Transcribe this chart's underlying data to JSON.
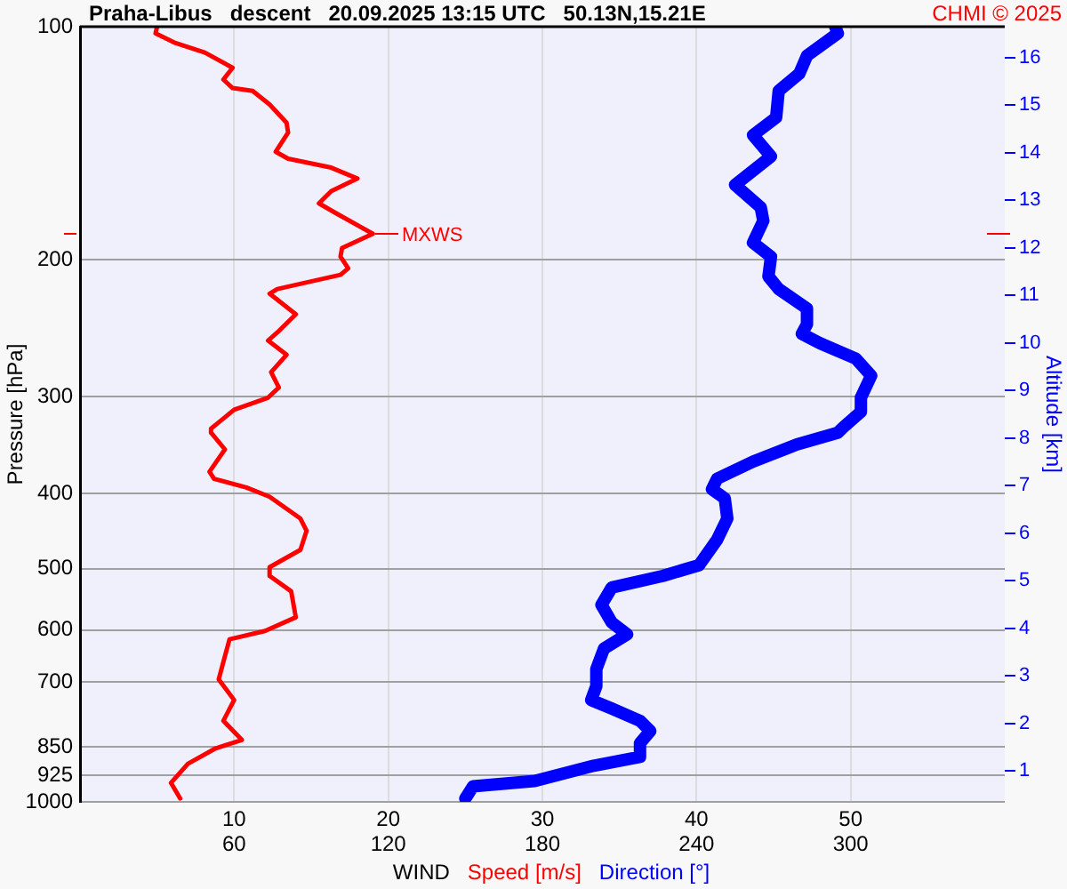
{
  "chart_data": {
    "type": "line",
    "title": "Praha-Libus   descent   20.09.2025 13:15 UTC   50.13N,15.21E",
    "xlabel": "WIND",
    "ylabel": "Pressure [hPa]",
    "y2label": "Altitude [km]",
    "annotations": [
      "CHMI © 2025",
      {
        "text": "MXWS",
        "x": 19.5,
        "y": 185
      }
    ],
    "series": [
      {
        "name": "Speed [m/s]",
        "color": "#ff0000",
        "x": [
          5.0,
          4.9,
          6.2,
          8.1,
          9.9,
          9.3,
          9.9,
          11.2,
          12.3,
          13.4,
          13.5,
          12.7,
          13.5,
          16.3,
          18.0,
          16.3,
          15.5,
          16.6,
          19.0,
          17.0,
          16.9,
          17.4,
          16.9,
          12.8,
          12.3,
          14.0,
          12.8,
          12.2,
          13.4,
          12.4,
          12.9,
          12.2,
          10.0,
          8.5,
          8.5,
          9.4,
          8.4,
          8.7,
          10.8,
          12.3,
          14.3,
          14.7,
          14.3,
          12.3,
          12.3,
          13.7,
          14.0,
          12.0,
          9.7,
          9.3,
          9.0,
          10.0,
          9.3,
          10.5,
          8.8,
          7.0,
          5.9,
          6.5
        ],
        "values": [
          100,
          102,
          105,
          108,
          113,
          117,
          120,
          121,
          126,
          133,
          137,
          145,
          148,
          152,
          157,
          163,
          169,
          174,
          185,
          193,
          198,
          205,
          209,
          218,
          221,
          235,
          248,
          254,
          265,
          279,
          292,
          301,
          312,
          330,
          334,
          351,
          375,
          383,
          393,
          404,
          431,
          447,
          473,
          498,
          511,
          535,
          578,
          602,
          617,
          660,
          695,
          739,
          786,
          832,
          853,
          893,
          945,
          990
        ]
      },
      {
        "name": "Direction [°]",
        "color": "#0000ff",
        "axis": "x2",
        "x": [
          294,
          295,
          283,
          280,
          272,
          271,
          262,
          269,
          255,
          265,
          266,
          262,
          269,
          268,
          272,
          283,
          283,
          281,
          288,
          302,
          308,
          304,
          304,
          297,
          295,
          279,
          262,
          248,
          246,
          251,
          252,
          248,
          241,
          227,
          207,
          203,
          207,
          213,
          204,
          201,
          201,
          199,
          207,
          218,
          222,
          218,
          218,
          200,
          177,
          153,
          150
        ],
        "values": [
          100,
          102,
          109,
          115,
          121,
          131,
          138,
          147,
          160,
          171,
          178,
          190,
          198,
          210,
          218,
          231,
          242,
          249,
          256,
          268,
          282,
          301,
          314,
          329,
          334,
          346,
          364,
          383,
          395,
          406,
          431,
          459,
          495,
          511,
          529,
          557,
          587,
          608,
          634,
          674,
          709,
          739,
          758,
          786,
          810,
          840,
          875,
          898,
          940,
          955,
          990
        ]
      }
    ],
    "xlim": [
      0,
      60
    ],
    "xticks": [
      10,
      20,
      30,
      40,
      50
    ],
    "x2lim": [
      0,
      360
    ],
    "x2ticks": [
      60,
      120,
      180,
      240,
      300
    ],
    "ylim": [
      1000,
      100
    ],
    "yticks": [
      100,
      200,
      300,
      400,
      500,
      600,
      700,
      850,
      925,
      1000
    ],
    "y2lim": [
      0.35,
      16.65
    ],
    "y2ticks": [
      1,
      2,
      3,
      4,
      5,
      6,
      7,
      8,
      9,
      10,
      11,
      12,
      13,
      14,
      15,
      16
    ],
    "log": "y",
    "grid": true,
    "legend": "bottom"
  }
}
